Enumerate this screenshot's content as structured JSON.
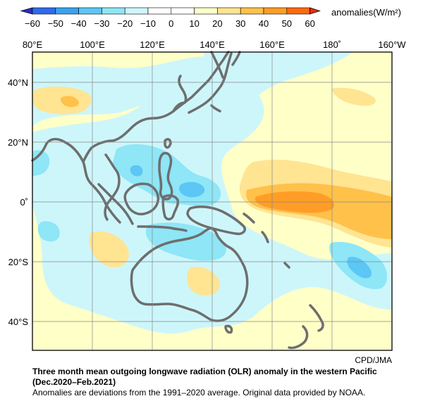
{
  "map": {
    "title": "Three month mean outgoing longwave radiation (OLR) anomaly in the western Pacific",
    "period": "(Dec.2020–Feb.2021)",
    "note": "Anomalies are deviations from the 1991–2020 average. Original data provided by NOAA.",
    "credit": "CPD/JMA",
    "units_label": "anomalies(W/m²)",
    "colorbar": {
      "ticks": [
        "−60",
        "−50",
        "−40",
        "−30",
        "−20",
        "−10",
        "0",
        "10",
        "20",
        "30",
        "40",
        "50",
        "60"
      ],
      "colors": [
        "#2a2ccc",
        "#2d6cea",
        "#3aa2f0",
        "#5cc6f5",
        "#8ee6f7",
        "#cdf6fb",
        "#ffffff",
        "#ffffc8",
        "#ffe492",
        "#ffc14a",
        "#ff9d26",
        "#ff6a10",
        "#f02a0a"
      ]
    },
    "lon_labels": [
      "80°E",
      "100°E",
      "120°E",
      "140°E",
      "160°E",
      "180˚",
      "160°W"
    ],
    "lat_labels": [
      "40°N",
      "20°N",
      "0˚",
      "20°S",
      "40°S"
    ]
  },
  "colors": {
    "frame": "#000000",
    "land_outline": "#6e6e6e",
    "grid": "#888888",
    "base_field": "#ffffc8"
  }
}
